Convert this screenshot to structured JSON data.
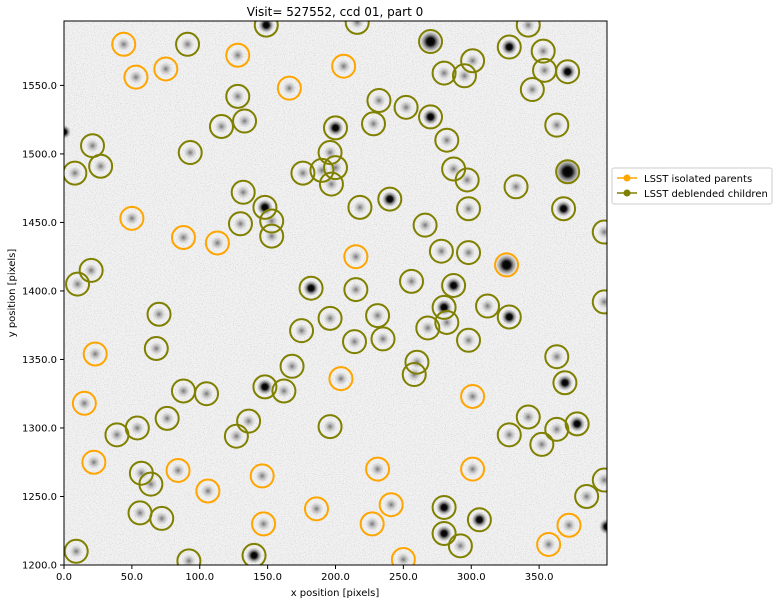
{
  "chart_data": {
    "type": "scatter",
    "title": "Visit= 527552, ccd 01, part 0",
    "xlabel": "x position [pixels]",
    "ylabel": "y position [pixels]",
    "xlim": [
      0,
      400
    ],
    "ylim": [
      1200,
      1597
    ],
    "xticks": [
      0,
      50,
      100,
      150,
      200,
      250,
      300,
      350
    ],
    "yticks": [
      1200,
      1250,
      1300,
      1350,
      1400,
      1450,
      1500,
      1550
    ],
    "xtick_labels": [
      "0.0",
      "50.0",
      "100.0",
      "150.0",
      "200.0",
      "250.0",
      "300.0",
      "350.0"
    ],
    "ytick_labels": [
      "1200.0",
      "1250.0",
      "1300.0",
      "1350.0",
      "1400.0",
      "1450.0",
      "1500.0",
      "1550.0"
    ],
    "legend_position": "outside-right",
    "background_image": "grayscale-astronomical-ccd-cutout",
    "colors": {
      "isolated_parents": "#ffa500",
      "deblended_children": "#808000",
      "axes": "#000000",
      "background": "#ffffff"
    },
    "series": [
      {
        "name": "LSST isolated parents",
        "marker": "open-circle",
        "color": "#ffa500",
        "points": [
          {
            "x": 44,
            "y": 1580
          },
          {
            "x": 53,
            "y": 1556
          },
          {
            "x": 75,
            "y": 1562
          },
          {
            "x": 128,
            "y": 1572
          },
          {
            "x": 166,
            "y": 1548
          },
          {
            "x": 206,
            "y": 1564
          },
          {
            "x": 50,
            "y": 1453
          },
          {
            "x": 88,
            "y": 1439
          },
          {
            "x": 113,
            "y": 1435
          },
          {
            "x": 215,
            "y": 1425
          },
          {
            "x": 326,
            "y": 1419
          },
          {
            "x": 23,
            "y": 1354
          },
          {
            "x": 15,
            "y": 1318
          },
          {
            "x": 204,
            "y": 1336
          },
          {
            "x": 301,
            "y": 1323
          },
          {
            "x": 22,
            "y": 1275
          },
          {
            "x": 84,
            "y": 1269
          },
          {
            "x": 106,
            "y": 1254
          },
          {
            "x": 146,
            "y": 1265
          },
          {
            "x": 231,
            "y": 1270
          },
          {
            "x": 301,
            "y": 1270
          },
          {
            "x": 147,
            "y": 1230
          },
          {
            "x": 186,
            "y": 1241
          },
          {
            "x": 227,
            "y": 1230
          },
          {
            "x": 241,
            "y": 1244
          },
          {
            "x": 250,
            "y": 1204
          },
          {
            "x": 357,
            "y": 1215
          },
          {
            "x": 372,
            "y": 1229
          }
        ]
      },
      {
        "name": "LSST deblended children",
        "marker": "open-circle",
        "color": "#808000",
        "points": [
          {
            "x": 91,
            "y": 1580
          },
          {
            "x": 149,
            "y": 1594
          },
          {
            "x": 216,
            "y": 1596
          },
          {
            "x": 270,
            "y": 1582
          },
          {
            "x": 328,
            "y": 1578
          },
          {
            "x": 342,
            "y": 1594
          },
          {
            "x": 353,
            "y": 1575
          },
          {
            "x": 280,
            "y": 1559
          },
          {
            "x": 295,
            "y": 1557
          },
          {
            "x": 301,
            "y": 1568
          },
          {
            "x": 354,
            "y": 1561
          },
          {
            "x": 345,
            "y": 1547
          },
          {
            "x": 371,
            "y": 1560
          },
          {
            "x": 128,
            "y": 1542
          },
          {
            "x": 116,
            "y": 1520
          },
          {
            "x": 133,
            "y": 1524
          },
          {
            "x": 232,
            "y": 1539
          },
          {
            "x": 252,
            "y": 1534
          },
          {
            "x": 270,
            "y": 1527
          },
          {
            "x": 200,
            "y": 1519
          },
          {
            "x": 228,
            "y": 1522
          },
          {
            "x": 363,
            "y": 1521
          },
          {
            "x": 21,
            "y": 1506
          },
          {
            "x": 282,
            "y": 1510
          },
          {
            "x": 93,
            "y": 1501
          },
          {
            "x": 196,
            "y": 1501
          },
          {
            "x": 8,
            "y": 1486
          },
          {
            "x": 27,
            "y": 1491
          },
          {
            "x": 176,
            "y": 1486
          },
          {
            "x": 190,
            "y": 1488
          },
          {
            "x": 200,
            "y": 1490
          },
          {
            "x": 197,
            "y": 1478
          },
          {
            "x": 287,
            "y": 1489
          },
          {
            "x": 297,
            "y": 1481
          },
          {
            "x": 333,
            "y": 1476
          },
          {
            "x": 371,
            "y": 1487
          },
          {
            "x": 132,
            "y": 1472
          },
          {
            "x": 148,
            "y": 1461
          },
          {
            "x": 153,
            "y": 1451
          },
          {
            "x": 153,
            "y": 1440
          },
          {
            "x": 130,
            "y": 1449
          },
          {
            "x": 218,
            "y": 1461
          },
          {
            "x": 240,
            "y": 1467
          },
          {
            "x": 266,
            "y": 1448
          },
          {
            "x": 298,
            "y": 1460
          },
          {
            "x": 368,
            "y": 1460
          },
          {
            "x": 398,
            "y": 1443
          },
          {
            "x": 278,
            "y": 1429
          },
          {
            "x": 298,
            "y": 1428
          },
          {
            "x": 20,
            "y": 1415
          },
          {
            "x": 10,
            "y": 1405
          },
          {
            "x": 182,
            "y": 1402
          },
          {
            "x": 215,
            "y": 1401
          },
          {
            "x": 256,
            "y": 1407
          },
          {
            "x": 287,
            "y": 1404
          },
          {
            "x": 312,
            "y": 1389
          },
          {
            "x": 398,
            "y": 1392
          },
          {
            "x": 70,
            "y": 1383
          },
          {
            "x": 175,
            "y": 1371
          },
          {
            "x": 196,
            "y": 1380
          },
          {
            "x": 231,
            "y": 1382
          },
          {
            "x": 235,
            "y": 1365
          },
          {
            "x": 214,
            "y": 1363
          },
          {
            "x": 268,
            "y": 1373
          },
          {
            "x": 280,
            "y": 1388
          },
          {
            "x": 282,
            "y": 1377
          },
          {
            "x": 298,
            "y": 1364
          },
          {
            "x": 328,
            "y": 1381
          },
          {
            "x": 68,
            "y": 1358
          },
          {
            "x": 168,
            "y": 1345
          },
          {
            "x": 260,
            "y": 1348
          },
          {
            "x": 258,
            "y": 1339
          },
          {
            "x": 363,
            "y": 1352
          },
          {
            "x": 88,
            "y": 1327
          },
          {
            "x": 105,
            "y": 1325
          },
          {
            "x": 148,
            "y": 1330
          },
          {
            "x": 162,
            "y": 1327
          },
          {
            "x": 369,
            "y": 1333
          },
          {
            "x": 76,
            "y": 1307
          },
          {
            "x": 136,
            "y": 1305
          },
          {
            "x": 127,
            "y": 1294
          },
          {
            "x": 196,
            "y": 1301
          },
          {
            "x": 39,
            "y": 1295
          },
          {
            "x": 54,
            "y": 1300
          },
          {
            "x": 328,
            "y": 1295
          },
          {
            "x": 342,
            "y": 1308
          },
          {
            "x": 352,
            "y": 1288
          },
          {
            "x": 363,
            "y": 1299
          },
          {
            "x": 378,
            "y": 1303
          },
          {
            "x": 57,
            "y": 1267
          },
          {
            "x": 64,
            "y": 1259
          },
          {
            "x": 56,
            "y": 1238
          },
          {
            "x": 72,
            "y": 1234
          },
          {
            "x": 280,
            "y": 1242
          },
          {
            "x": 306,
            "y": 1233
          },
          {
            "x": 280,
            "y": 1223
          },
          {
            "x": 292,
            "y": 1214
          },
          {
            "x": 385,
            "y": 1250
          },
          {
            "x": 398,
            "y": 1262
          },
          {
            "x": 9,
            "y": 1210
          },
          {
            "x": 92,
            "y": 1203
          },
          {
            "x": 140,
            "y": 1207
          }
        ]
      }
    ]
  }
}
